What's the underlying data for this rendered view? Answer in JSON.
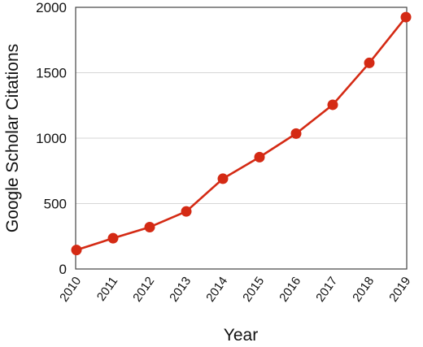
{
  "chart_data": {
    "type": "line",
    "title": "",
    "xlabel": "Year",
    "ylabel": "Google Scholar Citations",
    "x": [
      "2010",
      "2011",
      "2012",
      "2013",
      "2014",
      "2015",
      "2016",
      "2017",
      "2018",
      "2019"
    ],
    "series": [
      {
        "values": [
          145,
          235,
          320,
          440,
          690,
          855,
          1035,
          1255,
          1575,
          1925
        ],
        "color": "#d42a14"
      }
    ],
    "ylim": [
      0,
      2000
    ],
    "yticks": [
      0,
      500,
      1000,
      1500,
      2000
    ],
    "grid": "horizontal",
    "legend": "none"
  }
}
